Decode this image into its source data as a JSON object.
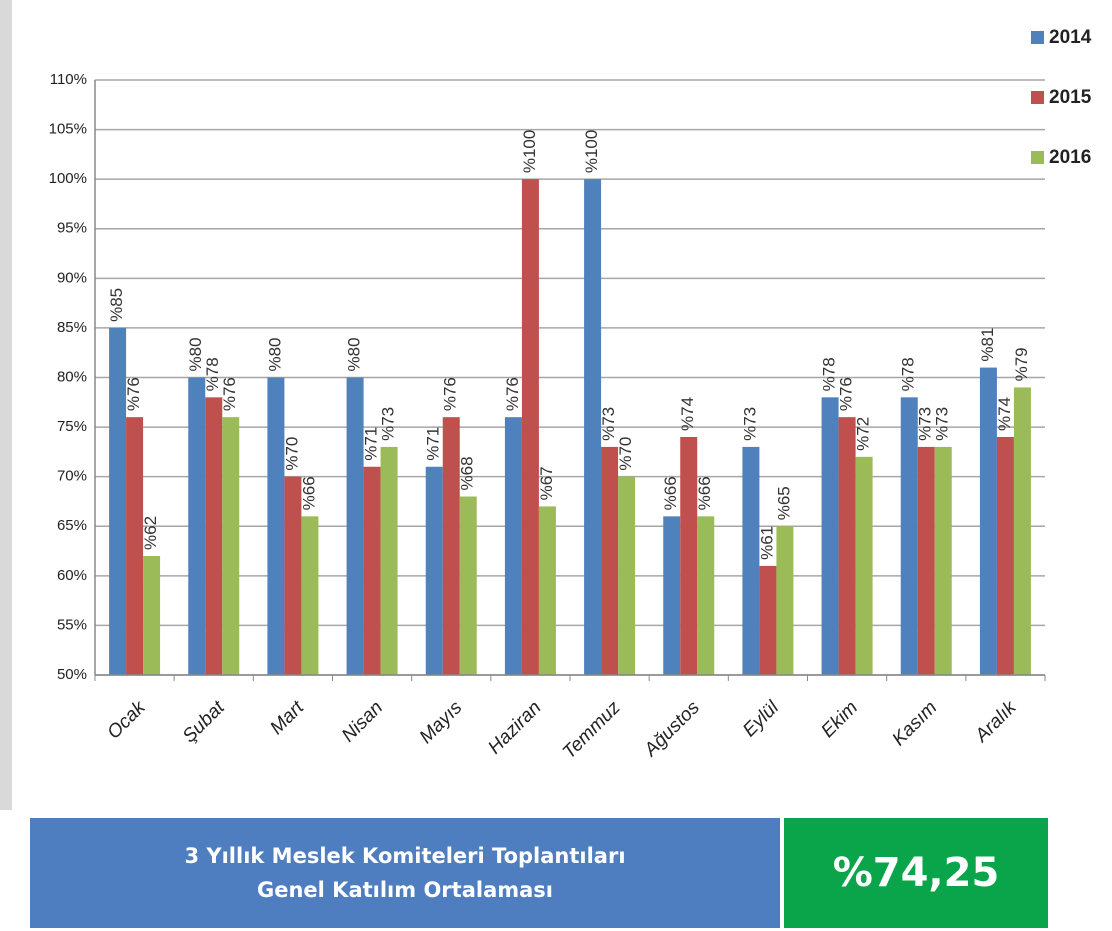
{
  "chart_data": {
    "type": "bar",
    "categories": [
      "Ocak",
      "Şubat",
      "Mart",
      "Nisan",
      "Mayıs",
      "Haziran",
      "Temmuz",
      "Ağustos",
      "Eylül",
      "Ekim",
      "Kasım",
      "Aralık"
    ],
    "series": [
      {
        "name": "2014",
        "color": "#4f81bd",
        "values": [
          85,
          80,
          80,
          80,
          71,
          76,
          100,
          66,
          73,
          78,
          78,
          81
        ],
        "value_labels": [
          "%85",
          "%80",
          "%80",
          "%80",
          "%71",
          "%76",
          "%100",
          "%66",
          "%73",
          "%78",
          "%78",
          "%81"
        ]
      },
      {
        "name": "2015",
        "color": "#c0504d",
        "values": [
          76,
          78,
          70,
          71,
          76,
          100,
          73,
          74,
          61,
          76,
          73,
          74
        ],
        "value_labels": [
          "%76",
          "%78",
          "%70",
          "%71",
          "%76",
          "%100",
          "%73",
          "%74",
          "%61",
          "%76",
          "%73",
          "%74"
        ]
      },
      {
        "name": "2016",
        "color": "#9bbb59",
        "values": [
          62,
          76,
          66,
          73,
          68,
          67,
          70,
          66,
          65,
          72,
          73,
          79
        ],
        "value_labels": [
          "%62",
          "%76",
          "%66",
          "%73",
          "%68",
          "%67",
          "%70",
          "%66",
          "%65",
          "%72",
          "%73",
          "%79"
        ]
      }
    ],
    "ylim": [
      50,
      110
    ],
    "yticks": [
      {
        "value": 50,
        "label": "50%"
      },
      {
        "value": 55,
        "label": "55%"
      },
      {
        "value": 60,
        "label": "60%"
      },
      {
        "value": 65,
        "label": "65%"
      },
      {
        "value": 70,
        "label": "70%"
      },
      {
        "value": 75,
        "label": "75%"
      },
      {
        "value": 80,
        "label": "80%"
      },
      {
        "value": 85,
        "label": "85%"
      },
      {
        "value": 90,
        "label": "90%"
      },
      {
        "value": 95,
        "label": "95%"
      },
      {
        "value": 100,
        "label": "100%"
      },
      {
        "value": 105,
        "label": "105%"
      },
      {
        "value": 110,
        "label": "110%"
      }
    ],
    "grid": true,
    "legend": "right"
  },
  "summary": {
    "title_lines": [
      "3 Yıllık Meslek Komiteleri Toplantıları",
      "Genel Katılım Ortalaması"
    ],
    "value": "%74,25"
  }
}
